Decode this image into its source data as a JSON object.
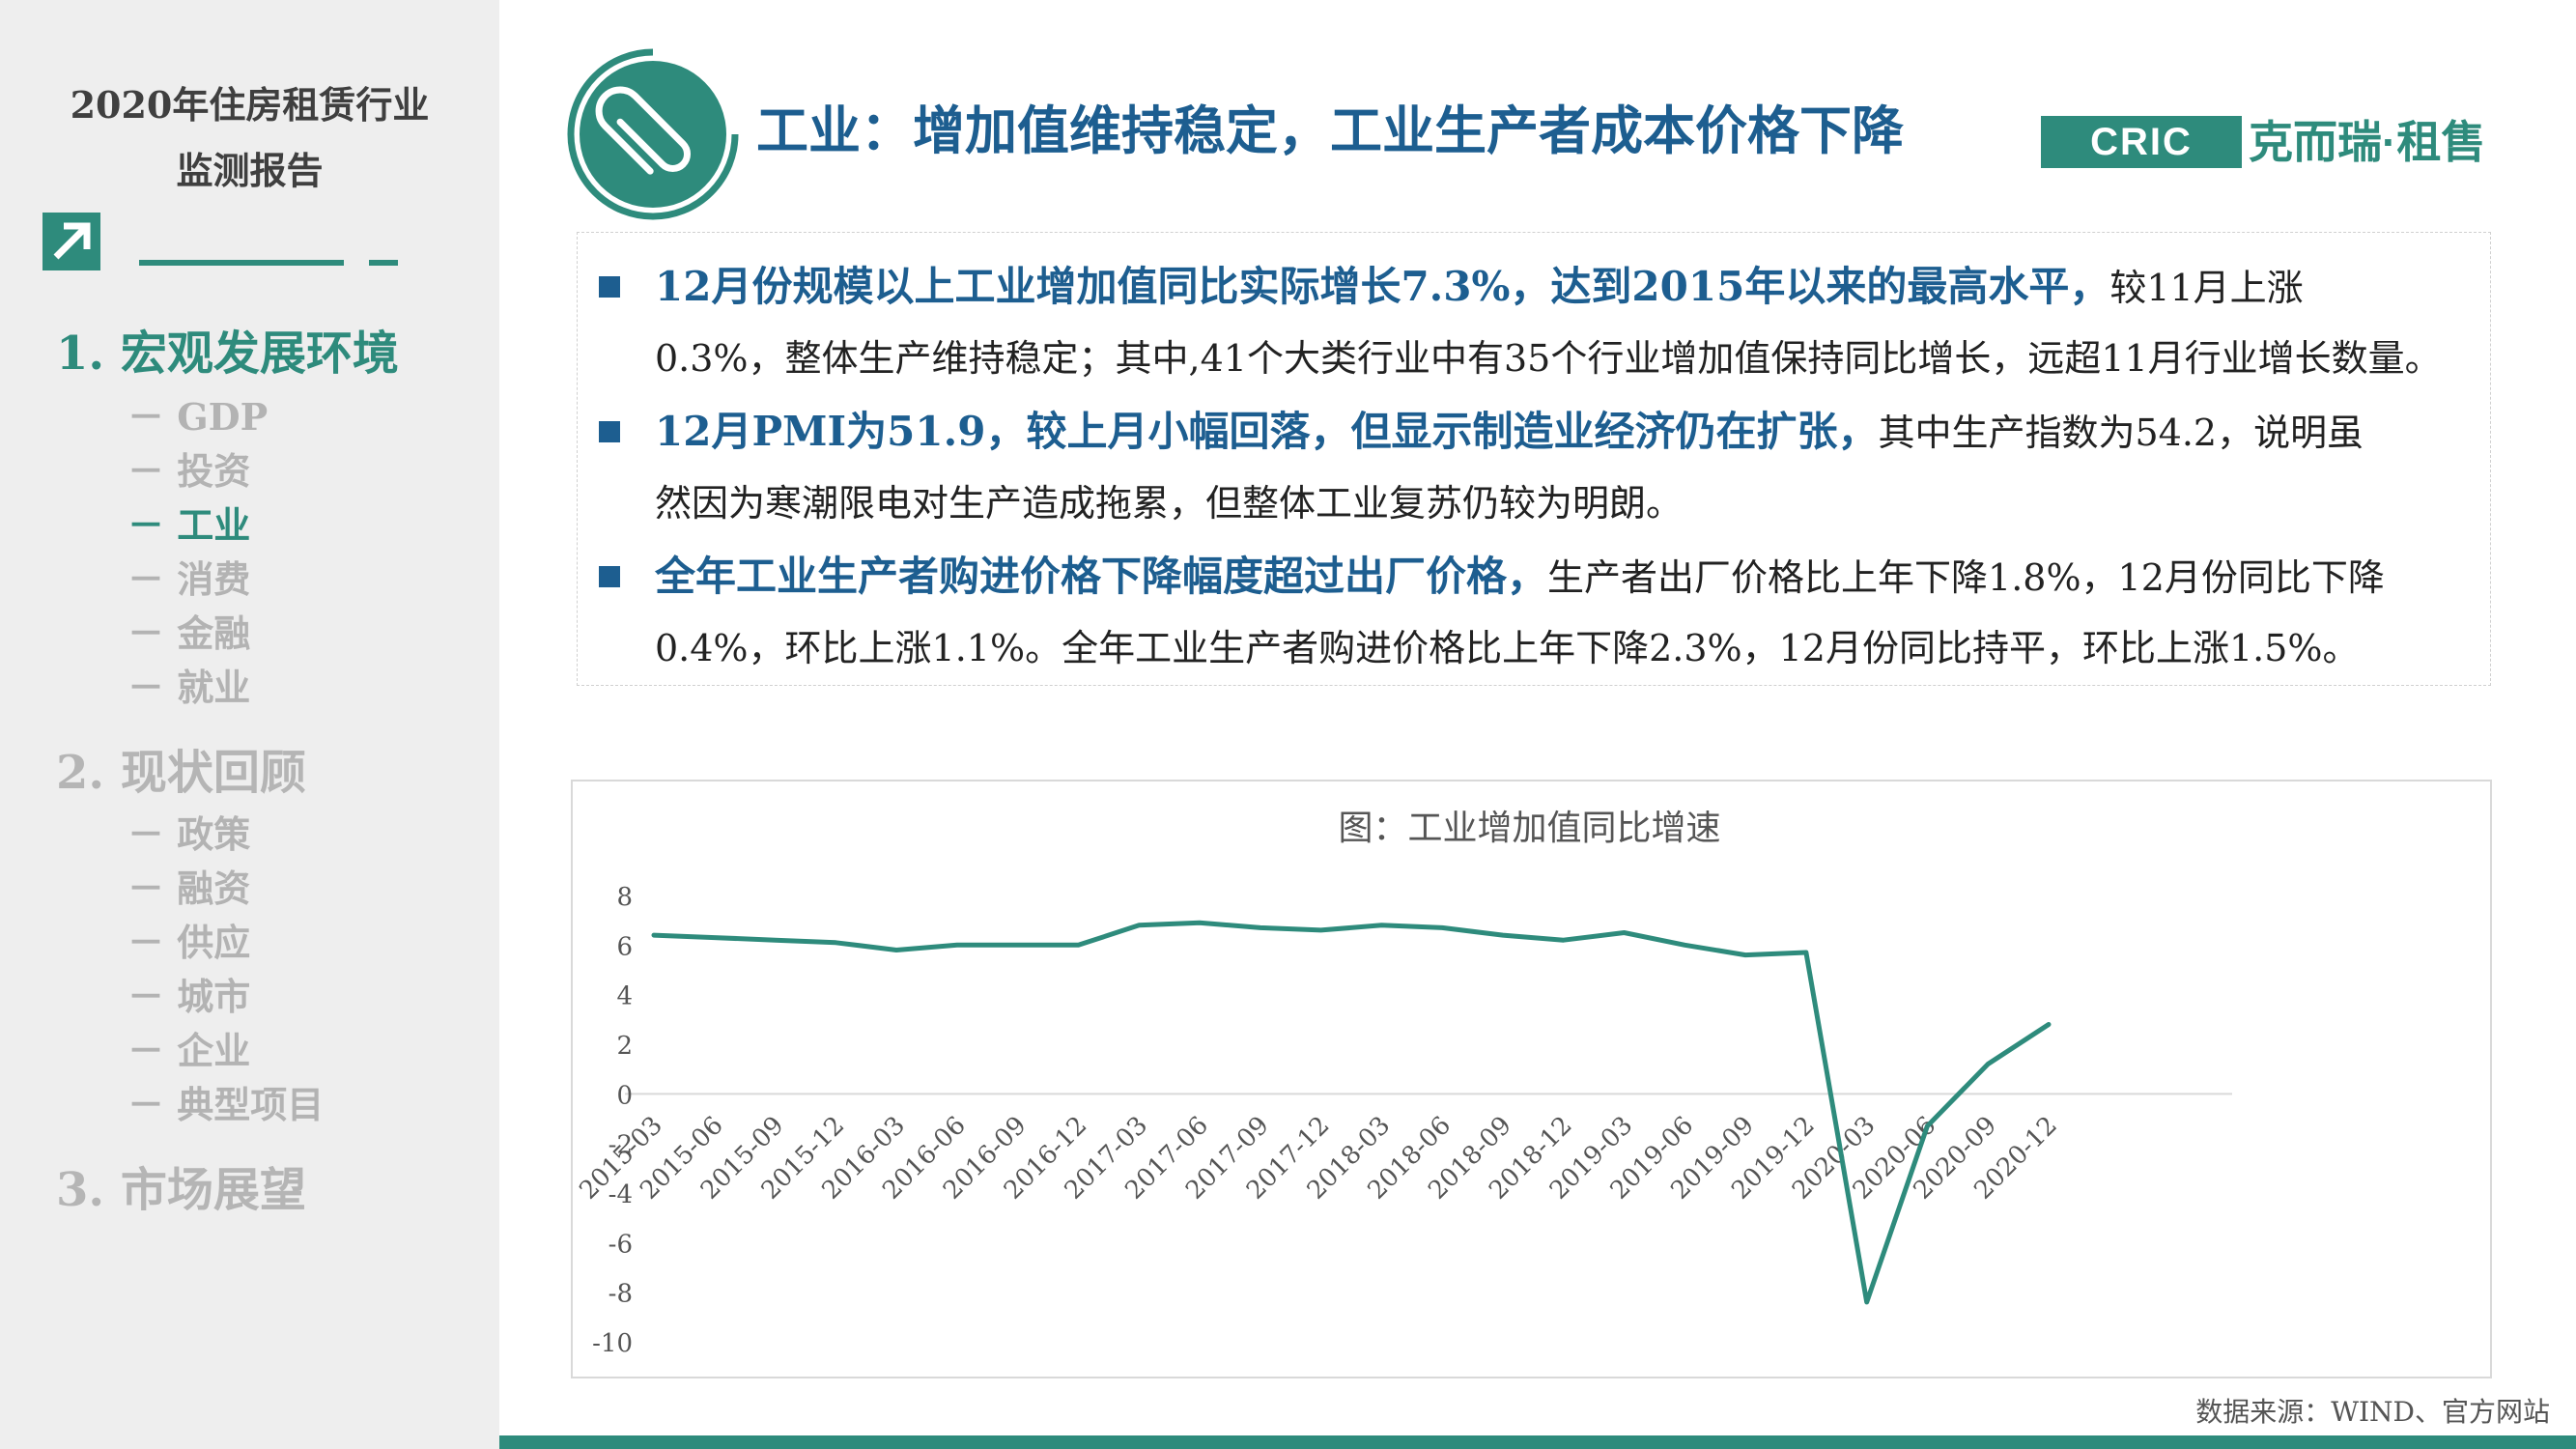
{
  "sidebar": {
    "report_title_line1": "2020年住房租赁行业",
    "report_title_line2": "监测报告",
    "sections": [
      {
        "title": "1. 宏观发展环境",
        "active": true,
        "items": [
          {
            "label": "－ GDP"
          },
          {
            "label": "－ 投资"
          },
          {
            "label": "－ 工业",
            "active": true
          },
          {
            "label": "－ 消费"
          },
          {
            "label": "－ 金融"
          },
          {
            "label": "－ 就业"
          }
        ]
      },
      {
        "title": "2. 现状回顾",
        "items": [
          {
            "label": "－ 政策"
          },
          {
            "label": "－ 融资"
          },
          {
            "label": "－ 供应"
          },
          {
            "label": "－ 城市"
          },
          {
            "label": "－ 企业"
          },
          {
            "label": "－ 典型项目"
          }
        ]
      },
      {
        "title": "3. 市场展望",
        "items": []
      }
    ]
  },
  "header": {
    "title": "工业：增加值维持稳定，工业生产者成本价格下降",
    "badge_icon": "paperclip-icon",
    "logo_box": "CRIC",
    "logo_cn": "克而瑞·租售"
  },
  "bullets": [
    {
      "line1_highlight": "12月份规模以上工业增加值同比实际增长7.3%，达到2015年以来的最高水平，",
      "line1_rest": "较11月上涨",
      "line2": "0.3%，整体生产维持稳定；其中,41个大类行业中有35个行业增加值保持同比增长，远超11月行业增长数量。"
    },
    {
      "line1_highlight": "12月PMI为51.9，较上月小幅回落，但显示制造业经济仍在扩张，",
      "line1_rest": "其中生产指数为54.2，说明虽",
      "line2": "然因为寒潮限电对生产造成拖累，但整体工业复苏仍较为明朗。"
    },
    {
      "line1_highlight": "全年工业生产者购进价格下降幅度超过出厂价格，",
      "line1_rest": "生产者出厂价格比上年下降1.8%，12月份同比下降",
      "line2": "0.4%，环比上涨1.1%。全年工业生产者购进价格比上年下降2.3%，12月份同比持平，环比上涨1.5%。"
    }
  ],
  "chart_data": {
    "type": "line",
    "title": "图：工业增加值同比增速",
    "xlabel": "",
    "ylabel": "",
    "ylim": [
      -10,
      8
    ],
    "yticks": [
      8,
      6,
      4,
      2,
      0,
      -2,
      -4,
      -6,
      -8,
      -10
    ],
    "grid": false,
    "legend": "none",
    "categories": [
      "2015-03",
      "2015-06",
      "2015-09",
      "2015-12",
      "2016-03",
      "2016-06",
      "2016-09",
      "2016-12",
      "2017-03",
      "2017-06",
      "2017-09",
      "2017-12",
      "2018-03",
      "2018-06",
      "2018-09",
      "2018-12",
      "2019-03",
      "2019-06",
      "2019-09",
      "2019-12",
      "2020-03",
      "2020-06",
      "2020-09",
      "2020-12"
    ],
    "series": [
      {
        "color": "#2e8b7c",
        "values": [
          6.4,
          6.3,
          6.2,
          6.1,
          5.8,
          6.0,
          6.0,
          6.0,
          6.8,
          6.9,
          6.7,
          6.6,
          6.8,
          6.7,
          6.4,
          6.2,
          6.5,
          6.0,
          5.6,
          5.7,
          -8.4,
          -1.3,
          1.2,
          2.8
        ]
      }
    ]
  },
  "source": "数据来源：WIND、官方网站",
  "colors": {
    "accent": "#2e8b7c",
    "title_blue": "#1d5e90"
  }
}
